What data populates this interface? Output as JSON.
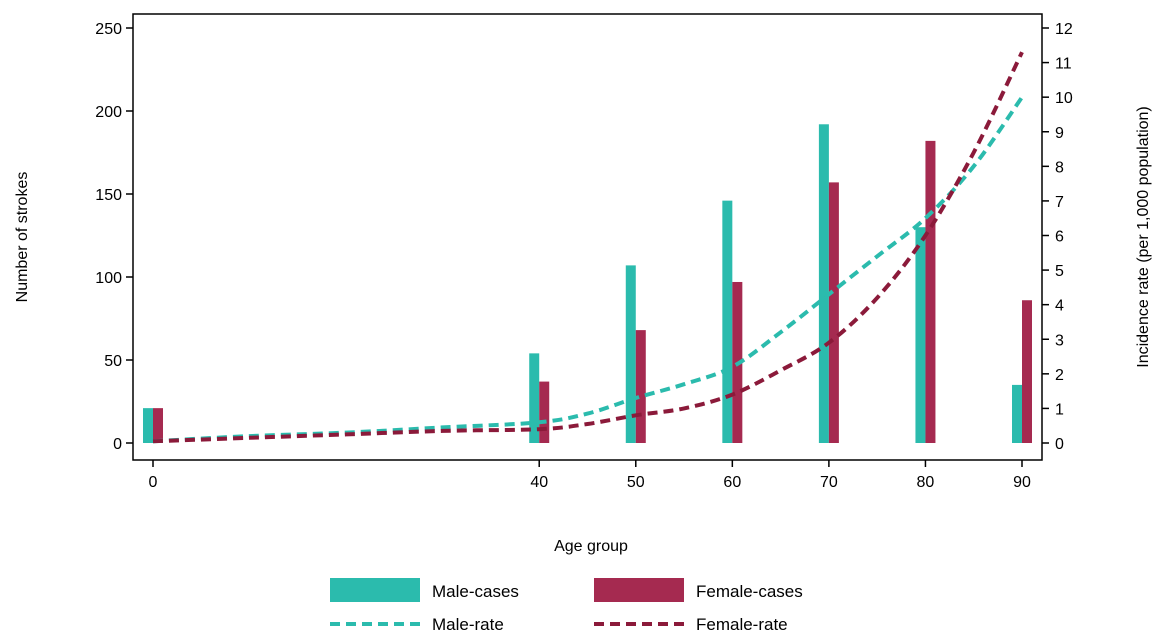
{
  "chart_data": {
    "type": "bar",
    "x": [
      0,
      40,
      50,
      60,
      70,
      80,
      90
    ],
    "xlabel": "Age group",
    "ylabel": "Number of strokes",
    "y2label": "Incidence rate (per 1,000 population)",
    "xlim": [
      0,
      90
    ],
    "ylim": [
      0,
      250
    ],
    "y2lim": [
      0,
      12
    ],
    "xticks": [
      0,
      40,
      50,
      60,
      70,
      80,
      90
    ],
    "yticks": [
      0,
      50,
      100,
      150,
      200,
      250
    ],
    "y2ticks": [
      0,
      1,
      2,
      3,
      4,
      5,
      6,
      7,
      8,
      9,
      10,
      11,
      12
    ],
    "grid": false,
    "legend_position": "bottom",
    "bar_series": [
      {
        "name": "Male-cases",
        "color": "#2bbbad",
        "values": [
          21,
          54,
          107,
          146,
          192,
          130,
          35
        ]
      },
      {
        "name": "Female-cases",
        "color": "#a52a50",
        "values": [
          21,
          37,
          68,
          97,
          157,
          182,
          86
        ]
      }
    ],
    "line_series": [
      {
        "name": "Male-rate",
        "color": "#2bbbad",
        "axis": "right",
        "style": "dashed",
        "x": [
          0,
          10,
          20,
          30,
          40,
          45,
          50,
          55,
          60,
          65,
          70,
          75,
          80,
          85,
          90
        ],
        "values": [
          0.05,
          0.2,
          0.3,
          0.45,
          0.6,
          0.85,
          1.3,
          1.7,
          2.2,
          3.2,
          4.3,
          5.4,
          6.5,
          8.0,
          10.0
        ]
      },
      {
        "name": "Female-rate",
        "color": "#8b1a3a",
        "axis": "right",
        "style": "dashed",
        "x": [
          0,
          10,
          20,
          30,
          40,
          45,
          50,
          55,
          60,
          65,
          70,
          75,
          80,
          85,
          90
        ],
        "values": [
          0.05,
          0.15,
          0.25,
          0.35,
          0.4,
          0.55,
          0.8,
          1.0,
          1.4,
          2.1,
          2.9,
          4.2,
          6.0,
          8.4,
          11.3
        ]
      }
    ]
  }
}
